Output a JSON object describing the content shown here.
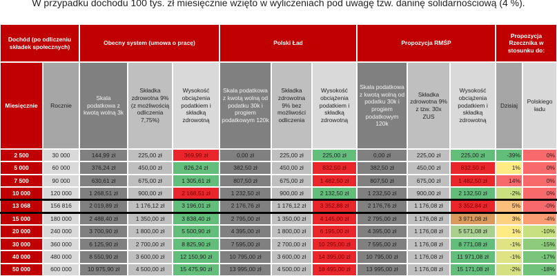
{
  "caption": "W przypadku dochodu 100 tys. zł miesięcznie wzięto w wyliczeniach pod uwagę tzw. daninę solidarnościową (4 %).",
  "table": {
    "group_headers": [
      "Dochód (po odliczeniu składek społecznych)",
      "Obecny system (umowa o pracę)",
      "Polski Ład",
      "Propozycja RMŚP",
      "Propozycja Rzecznika w stosunku do:"
    ],
    "column_headers": [
      "Miesięcznie",
      "Rocznie",
      "Skala podatkowa z kwotą wolną 3k",
      "Składka zdrowotna 9% (z możliwością odliczenia 7,75%)",
      "Wysokość obciążenia podatkiem i składką zdrowotną",
      "Skala podatkowa z kwotą wolną od podatku 30k i progiem podatkowym 120k",
      "Składka zdrowotna 9% bez możliwości odliczenia",
      "Wysokość obciążenia podatkiem i składką zdrowotną",
      "Skala podatkowa z kwotą wolną od podatku 30k i progiem podatkowym 120k",
      "Składka zdrowotna 9% z tzw. 30x ZUS",
      "Wysokość obciążenia podatkiem i składką zdrowotną",
      "Dzisiaj",
      "Polskiego ładu"
    ],
    "rows": [
      [
        "2 500",
        "30 000",
        "144,99 zł",
        "225,00 zł",
        "369,99 zł",
        "0,00 zł",
        "225,00 zł",
        "225,00 zł",
        "0,00 zł",
        "225,00 zł",
        "225,00 zł",
        "-39%",
        "0%"
      ],
      [
        "5 000",
        "60 000",
        "376,24 zł",
        "450,00 zł",
        "826,24 zł",
        "382,50 zł",
        "450,00 zł",
        "832,50 zł",
        "382,50 zł",
        "450,00 zł",
        "832,50 zł",
        "1%",
        "0%"
      ],
      [
        "7 500",
        "90 000",
        "630,61 zł",
        "675,00 zł",
        "1 305,61 zł",
        "807,50 zł",
        "675,00 zł",
        "1 482,50 zł",
        "807,50 zł",
        "675,00 zł",
        "1 482,50 zł",
        "14%",
        "0%"
      ],
      [
        "10 000",
        "120 000",
        "1 268,51 zł",
        "900,00 zł",
        "2 168,51 zł",
        "1 232,50 zł",
        "900,00 zł",
        "2 132,50 zł",
        "1 232,50 zł",
        "900,00 zł",
        "2 132,50 zł",
        "-2%",
        "0%"
      ],
      [
        "13 068",
        "156 816",
        "2 019,89 zł",
        "1 176,12 zł",
        "3 196,01 zł",
        "2 176,76 zł",
        "1 176,12 zł",
        "3 352,88 zł",
        "2 176,76 zł",
        "1 176,08 zł",
        "3 352,84 zł",
        "5%",
        "-0%"
      ],
      [
        "15 000",
        "180 000",
        "2 488,40 zł",
        "1 350,00 zł",
        "3 838,40 zł",
        "2 795,00 zł",
        "1 350,00 zł",
        "4 145,00 zł",
        "2 795,00 zł",
        "1 176,08 zł",
        "3 971,08 zł",
        "3%",
        "-4%"
      ],
      [
        "20 000",
        "240 000",
        "3 700,90 zł",
        "1 800,00 zł",
        "5 500,90 zł",
        "4 395,00 zł",
        "1 800,00 zł",
        "6 195,00 zł",
        "4 395,00 zł",
        "1 176,08 zł",
        "5 571,08 zł",
        "1%",
        "-10%"
      ],
      [
        "30 000",
        "360 000",
        "6 125,90 zł",
        "2 700,00 zł",
        "8 825,90 zł",
        "7 595,00 zł",
        "2 700,00 zł",
        "10 295,00 zł",
        "7 595,00 zł",
        "1 176,08 zł",
        "8 771,08 zł",
        "-1%",
        "-15%"
      ],
      [
        "40 000",
        "480 000",
        "8 550,90 zł",
        "3 600,00 zł",
        "12 150,90 zł",
        "10 795,00 zł",
        "3 600,00 zł",
        "14 395,00 zł",
        "10 795,00 zł",
        "1 176,08 zł",
        "11 971,08 zł",
        "-1%",
        "-17%"
      ],
      [
        "50 000",
        "600 000",
        "10 975,90 zł",
        "4 500,00 zł",
        "15 475,90 zł",
        "13 995,00 zł",
        "4 500,00 zł",
        "18 495,00 zł",
        "13 995,00 zł",
        "1 176,08 zł",
        "15 171,08 zł",
        "-2%",
        "-18%"
      ]
    ],
    "cell_fills": [
      [
        "#e8262b",
        "#63be7b",
        "#63be7b",
        "#63be7b",
        "#f8696b"
      ],
      [
        "#63be7b",
        "#e8262b",
        "#e8262b",
        "#ffeb84",
        "#f8696b"
      ],
      [
        "#63be7b",
        "#e8262b",
        "#e8262b",
        "#f8696b",
        "#f8696b"
      ],
      [
        "#e8262b",
        "#63be7b",
        "#63be7b",
        "#c9e080",
        "#f8696b"
      ],
      [
        "#63be7b",
        "#e8262b",
        "#e8262b",
        "#fcbf7b",
        "#f8696b"
      ],
      [
        "#63be7b",
        "#e8262b",
        "#d99a5b",
        "#fdd17f",
        "#fa9d75"
      ],
      [
        "#63be7b",
        "#e8262b",
        "#a9d08e",
        "#ffeb84",
        "#c9e080"
      ],
      [
        "#63be7b",
        "#e8262b",
        "#63be7b",
        "#e0e383",
        "#8fcb7d"
      ],
      [
        "#63be7b",
        "#e8262b",
        "#63be7b",
        "#e0e383",
        "#7ac57c"
      ],
      [
        "#63be7b",
        "#e8262b",
        "#63be7b",
        "#d5e082",
        "#70c27b"
      ]
    ]
  }
}
